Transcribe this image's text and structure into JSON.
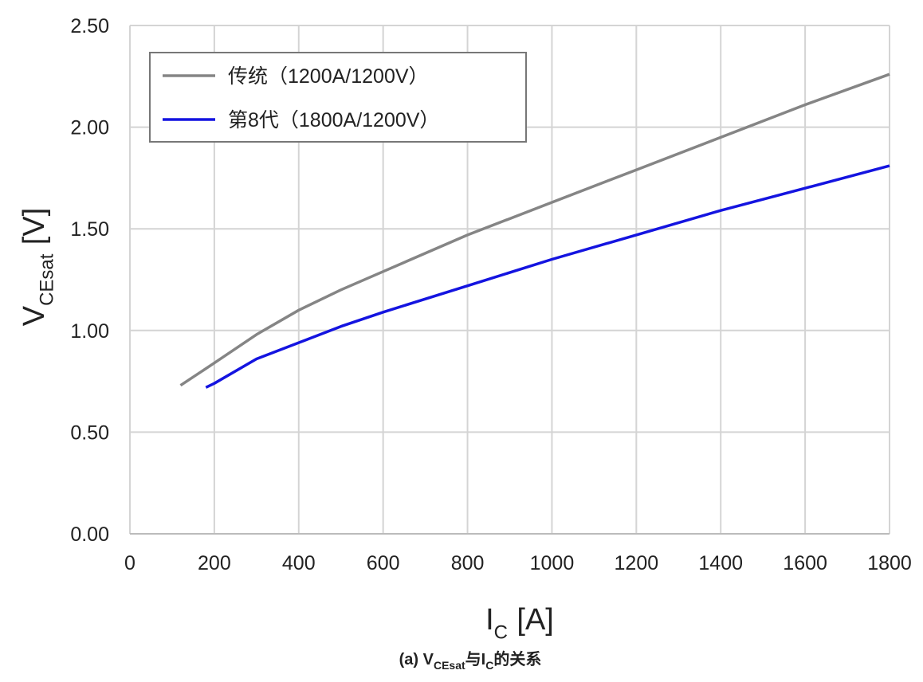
{
  "chart_data": {
    "type": "line",
    "y_label": [
      {
        "text": "V"
      },
      {
        "text": "CEsat",
        "sub": true
      },
      {
        "text": "[V]"
      }
    ],
    "x_label": [
      {
        "text": "I"
      },
      {
        "text": "C",
        "sub": true
      },
      {
        "text": "[A]"
      }
    ],
    "caption": [
      {
        "text": "(a) V"
      },
      {
        "text": "CEsat",
        "sub": true
      },
      {
        "text": "与I"
      },
      {
        "text": "C",
        "sub": true
      },
      {
        "text": "的关系"
      }
    ],
    "caption_color": "#2ea84a",
    "xlim": [
      0,
      1800
    ],
    "xticks": [
      0,
      200,
      400,
      600,
      800,
      1000,
      1200,
      1400,
      1600,
      1800
    ],
    "ylim": [
      0,
      2.5
    ],
    "yticks": [
      {
        "value": 0,
        "label": "0.00"
      },
      {
        "value": 0.5,
        "label": "0.50"
      },
      {
        "value": 1,
        "label": "1.00"
      },
      {
        "value": 1.5,
        "label": "1.50"
      },
      {
        "value": 2,
        "label": "2.00"
      },
      {
        "value": 2.5,
        "label": "2.50"
      }
    ],
    "grid": true,
    "legend": "upper left",
    "series": [
      {
        "name": "传统（1200A/1200V）",
        "color": "#858585",
        "x": [
          120,
          200,
          300,
          400,
          500,
          600,
          800,
          1000,
          1200,
          1400,
          1600,
          1800
        ],
        "values": [
          0.73,
          0.84,
          0.98,
          1.1,
          1.2,
          1.29,
          1.47,
          1.63,
          1.79,
          1.95,
          2.11,
          2.26
        ]
      },
      {
        "name": "第8代（1800A/1200V）",
        "color": "#1414e0",
        "x": [
          180,
          200,
          300,
          400,
          500,
          600,
          800,
          1000,
          1200,
          1400,
          1600,
          1800
        ],
        "values": [
          0.72,
          0.74,
          0.86,
          0.94,
          1.02,
          1.09,
          1.22,
          1.35,
          1.47,
          1.59,
          1.7,
          1.81
        ]
      }
    ]
  }
}
